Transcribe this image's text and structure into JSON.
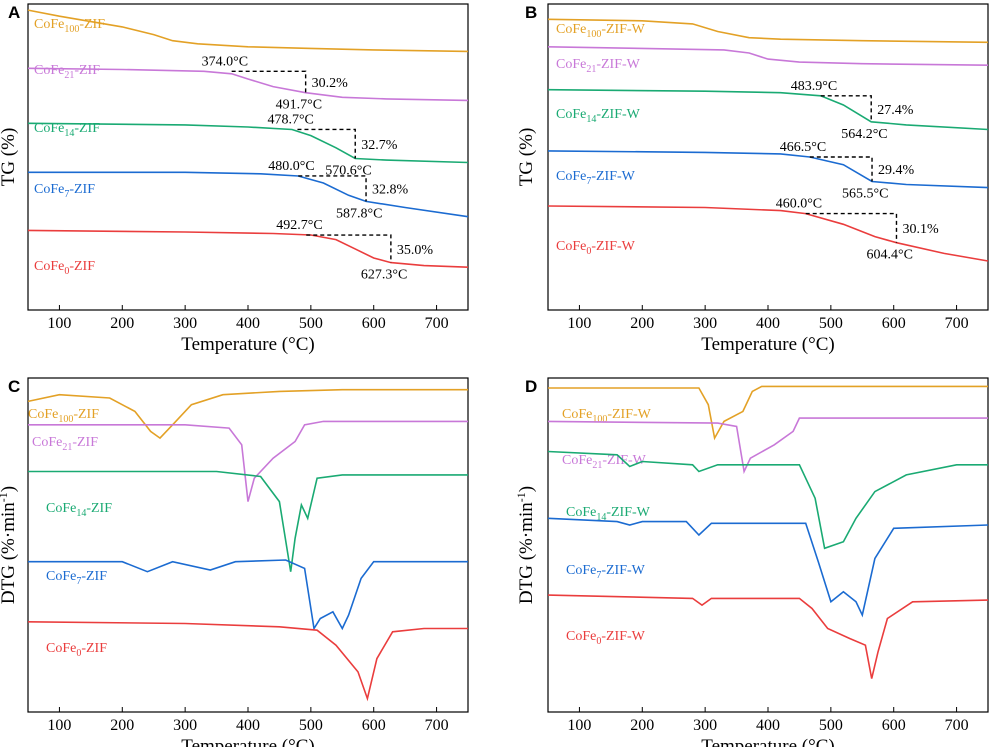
{
  "chart_data": [
    {
      "panel": "A",
      "type": "line",
      "xlabel": "Temperature (°C)",
      "ylabel": "TG (%)",
      "xlim": [
        50,
        750
      ],
      "xticks": [
        100,
        200,
        300,
        400,
        500,
        600,
        700
      ],
      "series": [
        {
          "name": "CoFe100-ZIF",
          "sub": "100",
          "color": "#E3A126",
          "points": [
            [
              50,
              98
            ],
            [
              100,
              96
            ],
            [
              200,
              92.5
            ],
            [
              250,
              90
            ],
            [
              280,
              88
            ],
            [
              320,
              87
            ],
            [
              400,
              86
            ],
            [
              500,
              85.5
            ],
            [
              600,
              85
            ],
            [
              750,
              84.5
            ]
          ]
        },
        {
          "name": "CoFe21-ZIF",
          "sub": "21",
          "color": "#C878D8",
          "points": [
            [
              50,
              79
            ],
            [
              200,
              78.6
            ],
            [
              330,
              78
            ],
            [
              374,
              77.2
            ],
            [
              400,
              75.5
            ],
            [
              440,
              73
            ],
            [
              491.7,
              71
            ],
            [
              550,
              69.5
            ],
            [
              620,
              69
            ],
            [
              750,
              68.5
            ]
          ]
        },
        {
          "name": "CoFe14-ZIF",
          "sub": "14",
          "color": "#1AAA73",
          "points": [
            [
              50,
              61
            ],
            [
              300,
              60.5
            ],
            [
              400,
              59.8
            ],
            [
              470,
              59
            ],
            [
              500,
              57
            ],
            [
              540,
              53
            ],
            [
              570.6,
              49.5
            ],
            [
              620,
              49
            ],
            [
              750,
              48.2
            ]
          ]
        },
        {
          "name": "CoFe7-ZIF",
          "sub": "7",
          "color": "#1B6BD1",
          "points": [
            [
              50,
              45
            ],
            [
              300,
              45
            ],
            [
              420,
              44.5
            ],
            [
              480,
              43.8
            ],
            [
              520,
              41.5
            ],
            [
              560,
              37.5
            ],
            [
              587.8,
              35.5
            ],
            [
              650,
              33.5
            ],
            [
              750,
              30.5
            ]
          ]
        },
        {
          "name": "CoFe0-ZIF",
          "sub": "0",
          "color": "#EA3D3D",
          "points": [
            [
              50,
              26
            ],
            [
              300,
              25.5
            ],
            [
              440,
              25
            ],
            [
              500,
              24.5
            ],
            [
              540,
              23
            ],
            [
              570,
              20
            ],
            [
              600,
              17
            ],
            [
              627.3,
              15.5
            ],
            [
              680,
              14.5
            ],
            [
              750,
              14
            ]
          ]
        }
      ],
      "annotations": [
        {
          "t1": "374.0°C",
          "t2": "491.7°C",
          "loss": "30.2%",
          "x1": 374,
          "x2": 491.7,
          "yTop": 78,
          "yBot": 71
        },
        {
          "t1": "478.7°C",
          "t2": "570.6°C",
          "loss": "32.7%",
          "x1": 478.7,
          "x2": 570.6,
          "yTop": 59,
          "yBot": 49.5
        },
        {
          "t1": "480.0°C",
          "t2": "587.8°C",
          "loss": "32.8%",
          "x1": 480,
          "x2": 587.8,
          "yTop": 43.8,
          "yBot": 35.5
        },
        {
          "t1": "492.7°C",
          "t2": "627.3°C",
          "loss": "35.0%",
          "x1": 492.7,
          "x2": 627.3,
          "yTop": 24.5,
          "yBot": 15.5
        }
      ]
    },
    {
      "panel": "B",
      "type": "line",
      "xlabel": "Temperature (°C)",
      "ylabel": "TG (%)",
      "xlim": [
        50,
        750
      ],
      "xticks": [
        100,
        200,
        300,
        400,
        500,
        600,
        700
      ],
      "series": [
        {
          "name": "CoFe100-ZIF-W",
          "sub": "100",
          "color": "#E3A126",
          "points": [
            [
              50,
              95
            ],
            [
              200,
              94.5
            ],
            [
              280,
              93.5
            ],
            [
              320,
              91
            ],
            [
              370,
              89
            ],
            [
              420,
              88.5
            ],
            [
              550,
              88
            ],
            [
              750,
              87.5
            ]
          ]
        },
        {
          "name": "CoFe21-ZIF-W",
          "sub": "21",
          "color": "#C878D8",
          "points": [
            [
              50,
              86
            ],
            [
              200,
              85.5
            ],
            [
              330,
              85
            ],
            [
              370,
              84
            ],
            [
              400,
              82
            ],
            [
              450,
              81
            ],
            [
              550,
              80.5
            ],
            [
              750,
              80
            ]
          ]
        },
        {
          "name": "CoFe14-ZIF-W",
          "sub": "14",
          "color": "#1AAA73",
          "points": [
            [
              50,
              72
            ],
            [
              300,
              71.5
            ],
            [
              420,
              71
            ],
            [
              483.9,
              70
            ],
            [
              520,
              67
            ],
            [
              564.2,
              61.5
            ],
            [
              620,
              60.5
            ],
            [
              750,
              59
            ]
          ]
        },
        {
          "name": "CoFe7-ZIF-W",
          "sub": "7",
          "color": "#1B6BD1",
          "points": [
            [
              50,
              52
            ],
            [
              300,
              51.5
            ],
            [
              420,
              51
            ],
            [
              466.5,
              50
            ],
            [
              520,
              47.5
            ],
            [
              565.5,
              42
            ],
            [
              620,
              41
            ],
            [
              750,
              40
            ]
          ]
        },
        {
          "name": "CoFe0-ZIF-W",
          "sub": "0",
          "color": "#EA3D3D",
          "points": [
            [
              50,
              34
            ],
            [
              300,
              33.5
            ],
            [
              420,
              32.5
            ],
            [
              460,
              31.5
            ],
            [
              520,
              28
            ],
            [
              570,
              24
            ],
            [
              604.4,
              22
            ],
            [
              680,
              18.5
            ],
            [
              750,
              16
            ]
          ]
        }
      ],
      "annotations": [
        {
          "t1": "483.9°C",
          "t2": "564.2°C",
          "loss": "27.4%",
          "x1": 483.9,
          "x2": 564.2,
          "yTop": 70,
          "yBot": 61.5
        },
        {
          "t1": "466.5°C",
          "t2": "565.5°C",
          "loss": "29.4%",
          "x1": 466.5,
          "x2": 565.5,
          "yTop": 50,
          "yBot": 42
        },
        {
          "t1": "460.0°C",
          "t2": "604.4°C",
          "loss": "30.1%",
          "x1": 460,
          "x2": 604.4,
          "yTop": 31.5,
          "yBot": 22
        }
      ]
    },
    {
      "panel": "C",
      "type": "line",
      "xlabel": "Temperature (°C)",
      "ylabel": "DTG (%·min-1)",
      "xlim": [
        50,
        750
      ],
      "xticks": [
        100,
        200,
        300,
        400,
        500,
        600,
        700
      ],
      "series": [
        {
          "name": "CoFe100-ZIF",
          "sub": "100",
          "color": "#E3A126",
          "points": [
            [
              50,
              93
            ],
            [
              100,
              95
            ],
            [
              180,
              94
            ],
            [
              220,
              90
            ],
            [
              245,
              84
            ],
            [
              260,
              82
            ],
            [
              280,
              86
            ],
            [
              310,
              92
            ],
            [
              360,
              95
            ],
            [
              450,
              96
            ],
            [
              550,
              96.5
            ],
            [
              750,
              96.5
            ]
          ]
        },
        {
          "name": "CoFe21-ZIF",
          "sub": "21",
          "color": "#C878D8",
          "points": [
            [
              50,
              86
            ],
            [
              300,
              86
            ],
            [
              370,
              85
            ],
            [
              390,
              80
            ],
            [
              400,
              63
            ],
            [
              410,
              70
            ],
            [
              440,
              76
            ],
            [
              475,
              81
            ],
            [
              490,
              86
            ],
            [
              520,
              87
            ],
            [
              750,
              87
            ]
          ]
        },
        {
          "name": "CoFe14-ZIF",
          "sub": "14",
          "color": "#1AAA73",
          "points": [
            [
              50,
              72
            ],
            [
              350,
              72
            ],
            [
              420,
              70.5
            ],
            [
              450,
              63
            ],
            [
              468,
              42
            ],
            [
              475,
              52
            ],
            [
              485,
              62
            ],
            [
              495,
              58
            ],
            [
              510,
              70
            ],
            [
              550,
              71
            ],
            [
              750,
              71
            ]
          ]
        },
        {
          "name": "CoFe7-ZIF",
          "sub": "7",
          "color": "#1B6BD1",
          "points": [
            [
              50,
              45
            ],
            [
              200,
              45
            ],
            [
              240,
              42
            ],
            [
              280,
              45
            ],
            [
              340,
              42.5
            ],
            [
              380,
              45
            ],
            [
              460,
              45.5
            ],
            [
              490,
              43
            ],
            [
              505,
              25
            ],
            [
              515,
              28
            ],
            [
              535,
              30
            ],
            [
              550,
              25
            ],
            [
              560,
              29
            ],
            [
              580,
              40
            ],
            [
              600,
              45
            ],
            [
              750,
              45
            ]
          ]
        },
        {
          "name": "CoFe0-ZIF",
          "sub": "0",
          "color": "#EA3D3D",
          "points": [
            [
              50,
              27
            ],
            [
              300,
              26.5
            ],
            [
              450,
              25.5
            ],
            [
              510,
              24.5
            ],
            [
              540,
              20
            ],
            [
              575,
              12
            ],
            [
              590,
              4
            ],
            [
              605,
              16
            ],
            [
              630,
              24
            ],
            [
              680,
              25
            ],
            [
              750,
              25
            ]
          ]
        }
      ]
    },
    {
      "panel": "D",
      "type": "line",
      "xlabel": "Temperature (°C)",
      "ylabel": "DTG (%·min-1)",
      "xlim": [
        50,
        750
      ],
      "xticks": [
        100,
        200,
        300,
        400,
        500,
        600,
        700
      ],
      "series": [
        {
          "name": "CoFe100-ZIF-W",
          "sub": "100",
          "color": "#E3A126",
          "points": [
            [
              50,
              97
            ],
            [
              290,
              97
            ],
            [
              305,
              92
            ],
            [
              315,
              82
            ],
            [
              330,
              87
            ],
            [
              360,
              90
            ],
            [
              375,
              96
            ],
            [
              390,
              97.5
            ],
            [
              750,
              97.5
            ]
          ]
        },
        {
          "name": "CoFe21-ZIF-W",
          "sub": "21",
          "color": "#C878D8",
          "points": [
            [
              50,
              87
            ],
            [
              320,
              86.5
            ],
            [
              350,
              85.5
            ],
            [
              362,
              72
            ],
            [
              372,
              76
            ],
            [
              410,
              80
            ],
            [
              440,
              84
            ],
            [
              450,
              88
            ],
            [
              480,
              88
            ],
            [
              750,
              88
            ]
          ]
        },
        {
          "name": "CoFe14-ZIF-W",
          "sub": "14",
          "color": "#1AAA73",
          "points": [
            [
              50,
              78
            ],
            [
              160,
              77
            ],
            [
              180,
              73.5
            ],
            [
              200,
              75
            ],
            [
              280,
              74
            ],
            [
              290,
              72
            ],
            [
              320,
              74
            ],
            [
              450,
              74
            ],
            [
              475,
              64
            ],
            [
              490,
              49
            ],
            [
              520,
              51
            ],
            [
              540,
              58
            ],
            [
              570,
              66
            ],
            [
              620,
              71
            ],
            [
              700,
              74
            ],
            [
              750,
              74
            ]
          ]
        },
        {
          "name": "CoFe7-ZIF-W",
          "sub": "7",
          "color": "#1B6BD1",
          "points": [
            [
              50,
              58
            ],
            [
              160,
              57
            ],
            [
              180,
              56
            ],
            [
              200,
              57
            ],
            [
              270,
              57
            ],
            [
              290,
              53
            ],
            [
              310,
              56.5
            ],
            [
              460,
              56.5
            ],
            [
              480,
              45
            ],
            [
              500,
              33
            ],
            [
              520,
              36
            ],
            [
              540,
              33
            ],
            [
              550,
              29
            ],
            [
              570,
              46
            ],
            [
              600,
              55
            ],
            [
              750,
              56
            ]
          ]
        },
        {
          "name": "CoFe0-ZIF-W",
          "sub": "0",
          "color": "#EA3D3D",
          "points": [
            [
              50,
              35
            ],
            [
              280,
              34
            ],
            [
              295,
              32
            ],
            [
              310,
              34
            ],
            [
              450,
              34
            ],
            [
              470,
              31
            ],
            [
              495,
              25
            ],
            [
              530,
              22
            ],
            [
              555,
              20
            ],
            [
              565,
              10
            ],
            [
              575,
              18
            ],
            [
              590,
              28
            ],
            [
              630,
              33
            ],
            [
              750,
              33.5
            ]
          ]
        }
      ]
    }
  ]
}
